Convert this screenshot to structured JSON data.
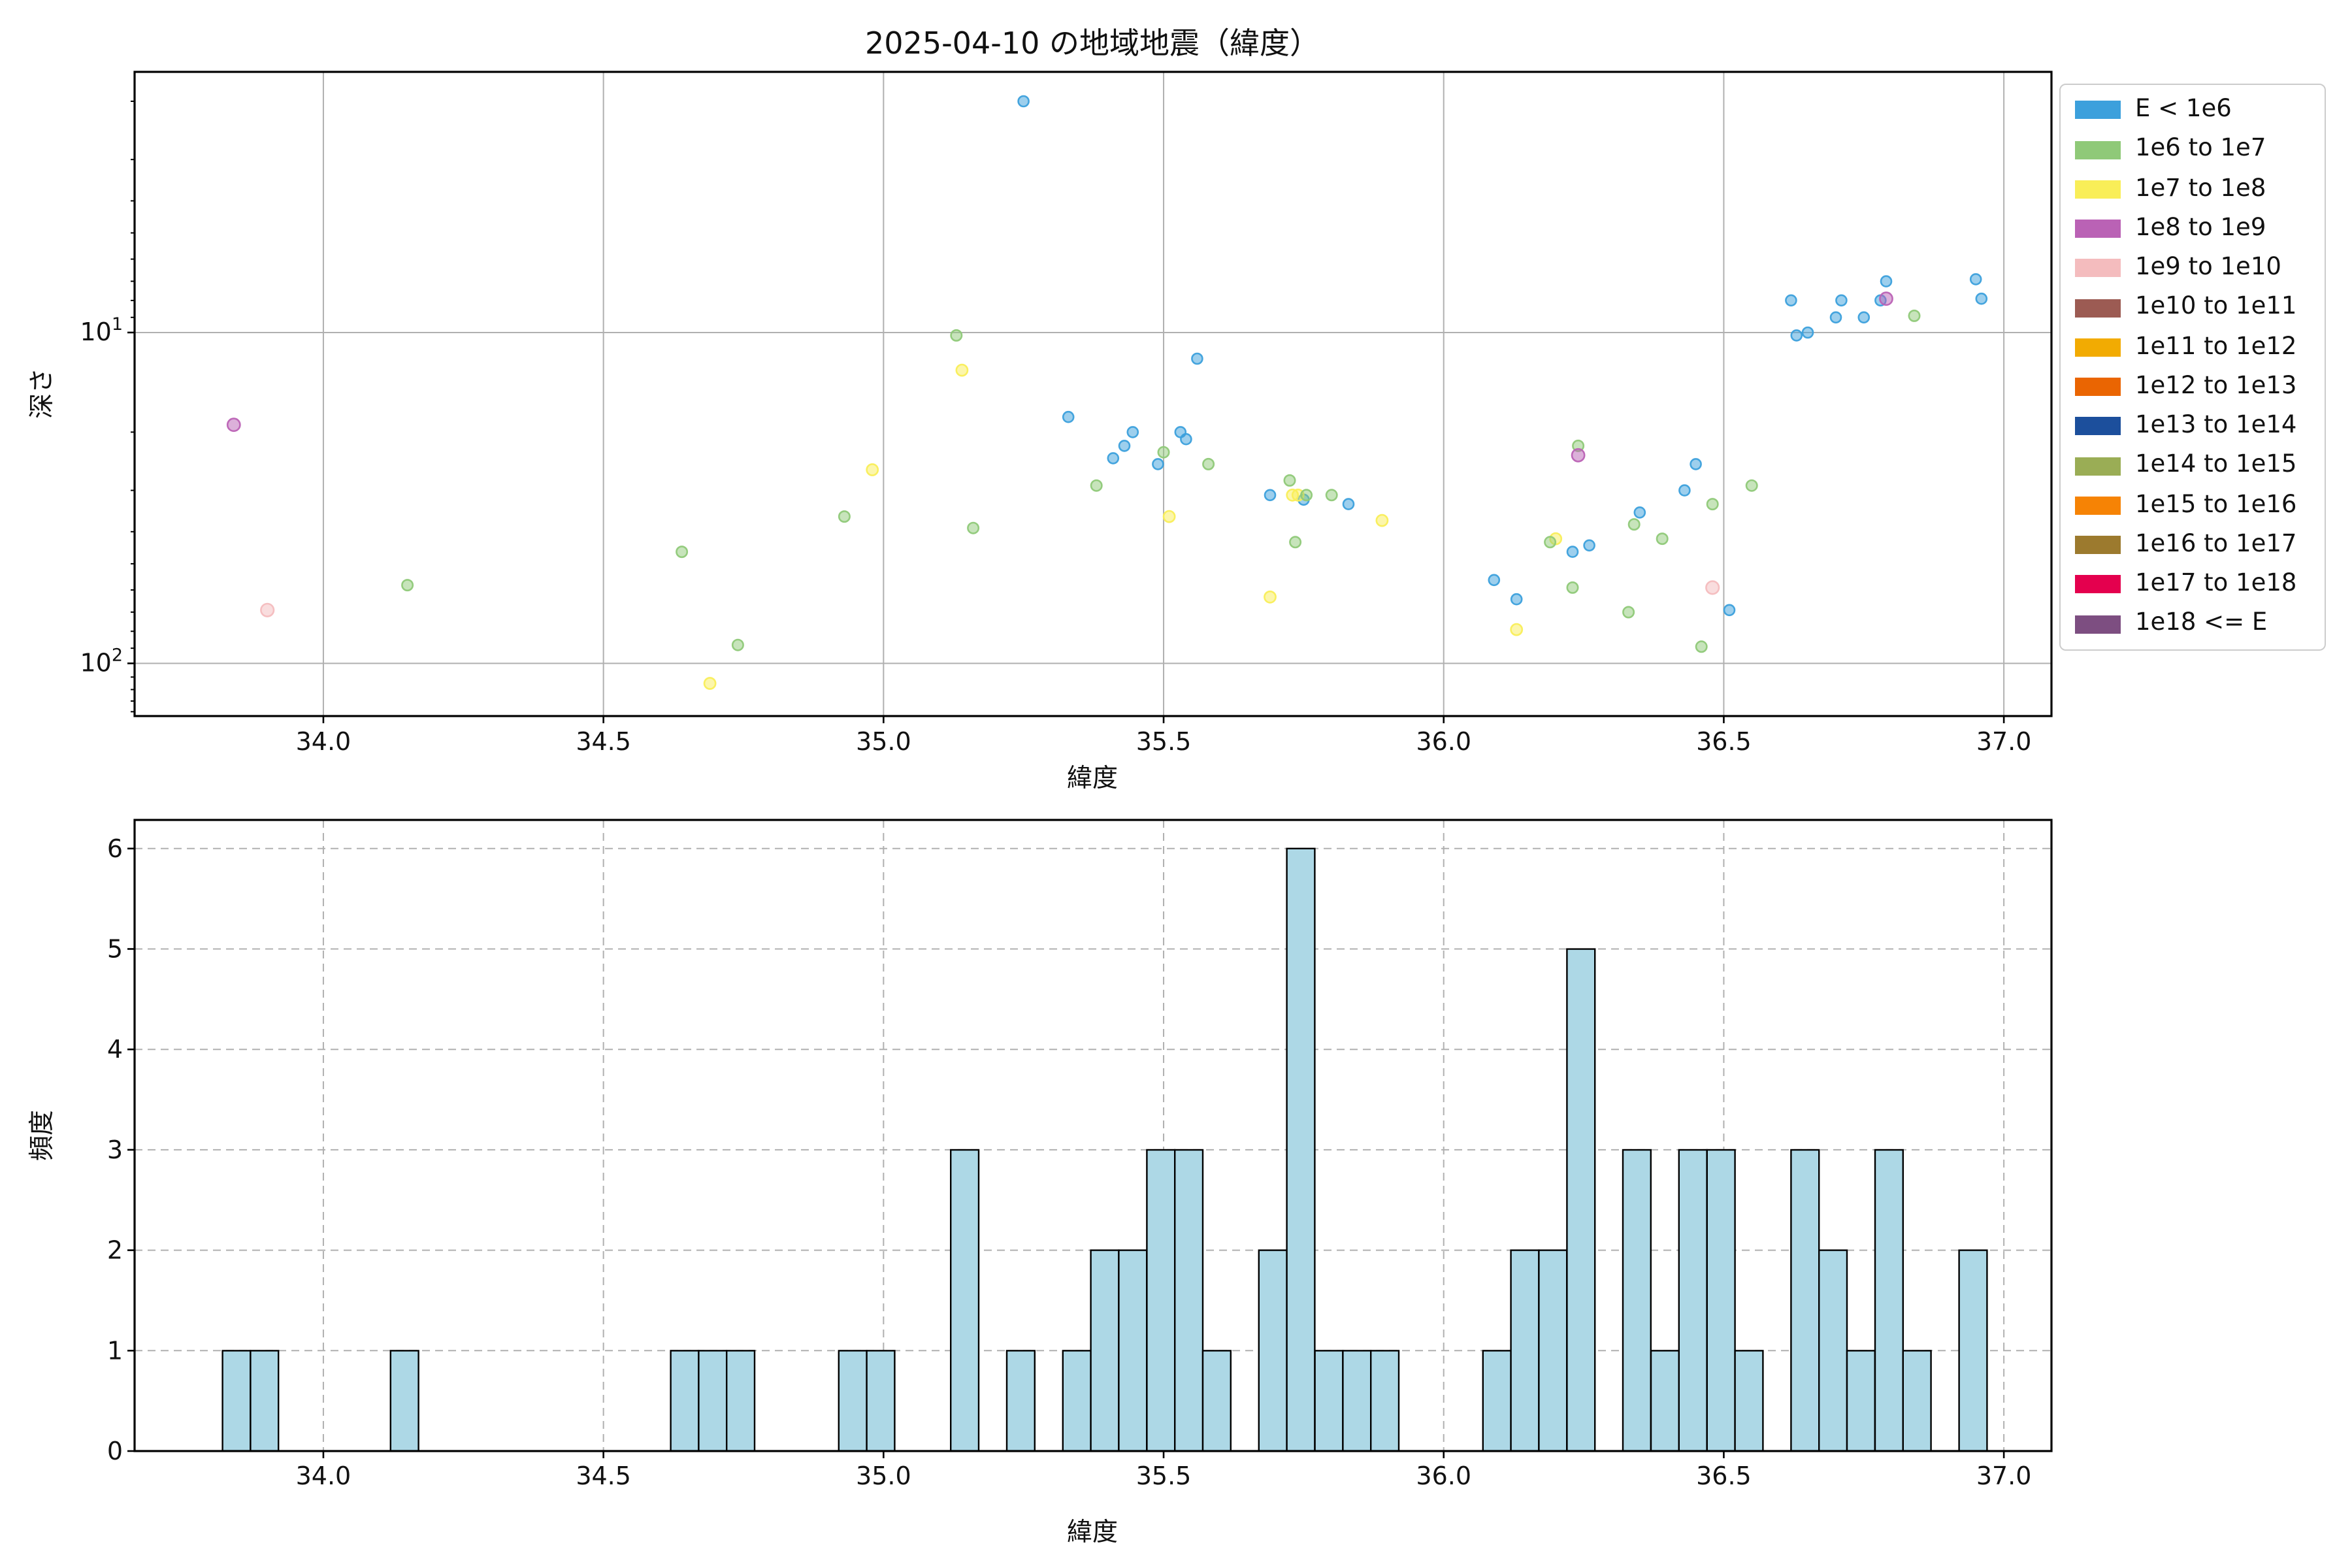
{
  "figure": {
    "title": "2025-04-10 の地域地震（緯度）",
    "background_color": "#ffffff",
    "grid_color": "#b0b0b0",
    "text_color": "#111111"
  },
  "legend": {
    "entries": [
      {
        "label": "E < 1e6",
        "color": "#3CA0DC"
      },
      {
        "label": "1e6 to 1e7",
        "color": "#8FC978"
      },
      {
        "label": "1e7 to 1e8",
        "color": "#F9EE58"
      },
      {
        "label": "1e8 to 1e9",
        "color": "#BA62B5"
      },
      {
        "label": "1e9 to 1e10",
        "color": "#F4BCBE"
      },
      {
        "label": "1e10 to 1e11",
        "color": "#9C5B53"
      },
      {
        "label": "1e11 to 1e12",
        "color": "#F2AB02"
      },
      {
        "label": "1e12 to 1e13",
        "color": "#EA6502"
      },
      {
        "label": "1e13 to 1e14",
        "color": "#1C4F9C"
      },
      {
        "label": "1e14 to 1e15",
        "color": "#9AAD55"
      },
      {
        "label": "1e15 to 1e16",
        "color": "#F68305"
      },
      {
        "label": "1e16 to 1e17",
        "color": "#9C7A2E"
      },
      {
        "label": "1e17 to 1e18",
        "color": "#E4004E"
      },
      {
        "label": "1e18 <= E",
        "color": "#7D4E81"
      }
    ]
  },
  "chart_data": [
    {
      "type": "scatter",
      "title": "2025-04-10 の地域地震（緯度）",
      "xlabel": "緯度",
      "ylabel": "深さ",
      "xlim": [
        33.663,
        37.085
      ],
      "x_ticks": [
        34.0,
        34.5,
        35.0,
        35.5,
        36.0,
        36.5,
        37.0
      ],
      "x_tick_labels": [
        "34.0",
        "34.5",
        "35.0",
        "35.5",
        "36.0",
        "36.5",
        "37.0"
      ],
      "y_scale": "log",
      "y_inverted": true,
      "ylim": [
        1.63,
        144.3
      ],
      "y_major_ticks": [
        10,
        100
      ],
      "y_major_tick_labels": [
        {
          "base": "10",
          "exp": "1"
        },
        {
          "base": "10",
          "exp": "2"
        }
      ],
      "y_minor_ticks": [
        2,
        3,
        4,
        5,
        6,
        7,
        8,
        9,
        20,
        30,
        40,
        50,
        60,
        70,
        80,
        90,
        110,
        120,
        130,
        140
      ],
      "grid_style": "solid",
      "marker_alpha": 0.5,
      "series": [
        {
          "name": "E < 1e6",
          "color": "#3CA0DC",
          "size": 4.0,
          "points": [
            [
              35.25,
              2.0
            ],
            [
              35.33,
              18
            ],
            [
              35.41,
              24
            ],
            [
              35.43,
              22
            ],
            [
              35.445,
              20
            ],
            [
              35.49,
              25
            ],
            [
              35.53,
              20
            ],
            [
              35.54,
              21
            ],
            [
              35.56,
              12
            ],
            [
              35.69,
              31
            ],
            [
              35.75,
              32
            ],
            [
              35.83,
              33
            ],
            [
              36.09,
              56
            ],
            [
              36.13,
              64
            ],
            [
              36.23,
              46
            ],
            [
              36.26,
              44
            ],
            [
              36.35,
              35
            ],
            [
              36.43,
              30
            ],
            [
              36.45,
              25
            ],
            [
              36.51,
              69
            ],
            [
              36.62,
              8.0
            ],
            [
              36.63,
              10.2
            ],
            [
              36.65,
              10.0
            ],
            [
              36.7,
              9.0
            ],
            [
              36.71,
              8.0
            ],
            [
              36.75,
              9.0
            ],
            [
              36.78,
              8.0
            ],
            [
              36.79,
              7.0
            ],
            [
              36.95,
              6.9
            ],
            [
              36.96,
              7.9
            ]
          ]
        },
        {
          "name": "1e6 to 1e7",
          "color": "#8FC978",
          "size": 4.1,
          "points": [
            [
              34.15,
              58
            ],
            [
              34.64,
              46
            ],
            [
              34.74,
              88
            ],
            [
              34.93,
              36
            ],
            [
              35.13,
              10.2
            ],
            [
              35.16,
              39
            ],
            [
              35.38,
              29
            ],
            [
              35.5,
              23
            ],
            [
              35.58,
              25
            ],
            [
              35.725,
              28
            ],
            [
              35.735,
              43
            ],
            [
              35.755,
              31
            ],
            [
              35.8,
              31
            ],
            [
              36.19,
              43
            ],
            [
              36.23,
              59
            ],
            [
              36.24,
              22
            ],
            [
              36.33,
              70
            ],
            [
              36.34,
              38
            ],
            [
              36.39,
              42
            ],
            [
              36.46,
              89
            ],
            [
              36.48,
              33
            ],
            [
              36.55,
              29
            ],
            [
              36.84,
              8.9
            ]
          ]
        },
        {
          "name": "1e7 to 1e8",
          "color": "#F9EE58",
          "size": 4.3,
          "points": [
            [
              34.69,
              115
            ],
            [
              34.98,
              26
            ],
            [
              35.14,
              13
            ],
            [
              35.51,
              36
            ],
            [
              35.69,
              63
            ],
            [
              35.73,
              31
            ],
            [
              35.74,
              31
            ],
            [
              35.89,
              37
            ],
            [
              36.13,
              79
            ],
            [
              36.2,
              42
            ]
          ]
        },
        {
          "name": "1e8 to 1e9",
          "color": "#BA62B5",
          "size": 4.8,
          "points": [
            [
              33.84,
              19
            ],
            [
              36.24,
              23.5
            ],
            [
              36.79,
              7.9
            ]
          ]
        },
        {
          "name": "1e9 to 1e10",
          "color": "#F4BCBE",
          "size": 4.9,
          "points": [
            [
              33.9,
              69
            ],
            [
              36.48,
              59
            ]
          ]
        }
      ]
    },
    {
      "type": "histogram",
      "xlabel": "緯度",
      "ylabel": "頻度",
      "xlim": [
        33.663,
        37.085
      ],
      "x_ticks": [
        34.0,
        34.5,
        35.0,
        35.5,
        36.0,
        36.5,
        37.0
      ],
      "x_tick_labels": [
        "34.0",
        "34.5",
        "35.0",
        "35.5",
        "36.0",
        "36.5",
        "37.0"
      ],
      "ylim": [
        0,
        6.285
      ],
      "y_ticks": [
        0,
        1,
        2,
        3,
        4,
        5,
        6
      ],
      "y_tick_labels": [
        "0",
        "1",
        "2",
        "3",
        "4",
        "5",
        "6"
      ],
      "grid_style": "dashed",
      "bar_fill": "#ADD8E6",
      "bar_edge": "#000000",
      "bin_width": 0.05,
      "bins": [
        [
          33.82,
          1
        ],
        [
          33.87,
          1
        ],
        [
          34.12,
          1
        ],
        [
          34.62,
          1
        ],
        [
          34.67,
          1
        ],
        [
          34.72,
          1
        ],
        [
          34.92,
          1
        ],
        [
          34.97,
          1
        ],
        [
          35.12,
          3
        ],
        [
          35.22,
          1
        ],
        [
          35.32,
          1
        ],
        [
          35.37,
          2
        ],
        [
          35.42,
          2
        ],
        [
          35.47,
          3
        ],
        [
          35.52,
          3
        ],
        [
          35.57,
          1
        ],
        [
          35.67,
          2
        ],
        [
          35.72,
          6
        ],
        [
          35.77,
          1
        ],
        [
          35.82,
          1
        ],
        [
          35.87,
          1
        ],
        [
          36.07,
          1
        ],
        [
          36.12,
          2
        ],
        [
          36.17,
          2
        ],
        [
          36.22,
          5
        ],
        [
          36.32,
          3
        ],
        [
          36.37,
          1
        ],
        [
          36.42,
          3
        ],
        [
          36.47,
          3
        ],
        [
          36.52,
          1
        ],
        [
          36.62,
          3
        ],
        [
          36.67,
          2
        ],
        [
          36.72,
          1
        ],
        [
          36.77,
          3
        ],
        [
          36.82,
          1
        ],
        [
          36.92,
          2
        ]
      ]
    }
  ]
}
